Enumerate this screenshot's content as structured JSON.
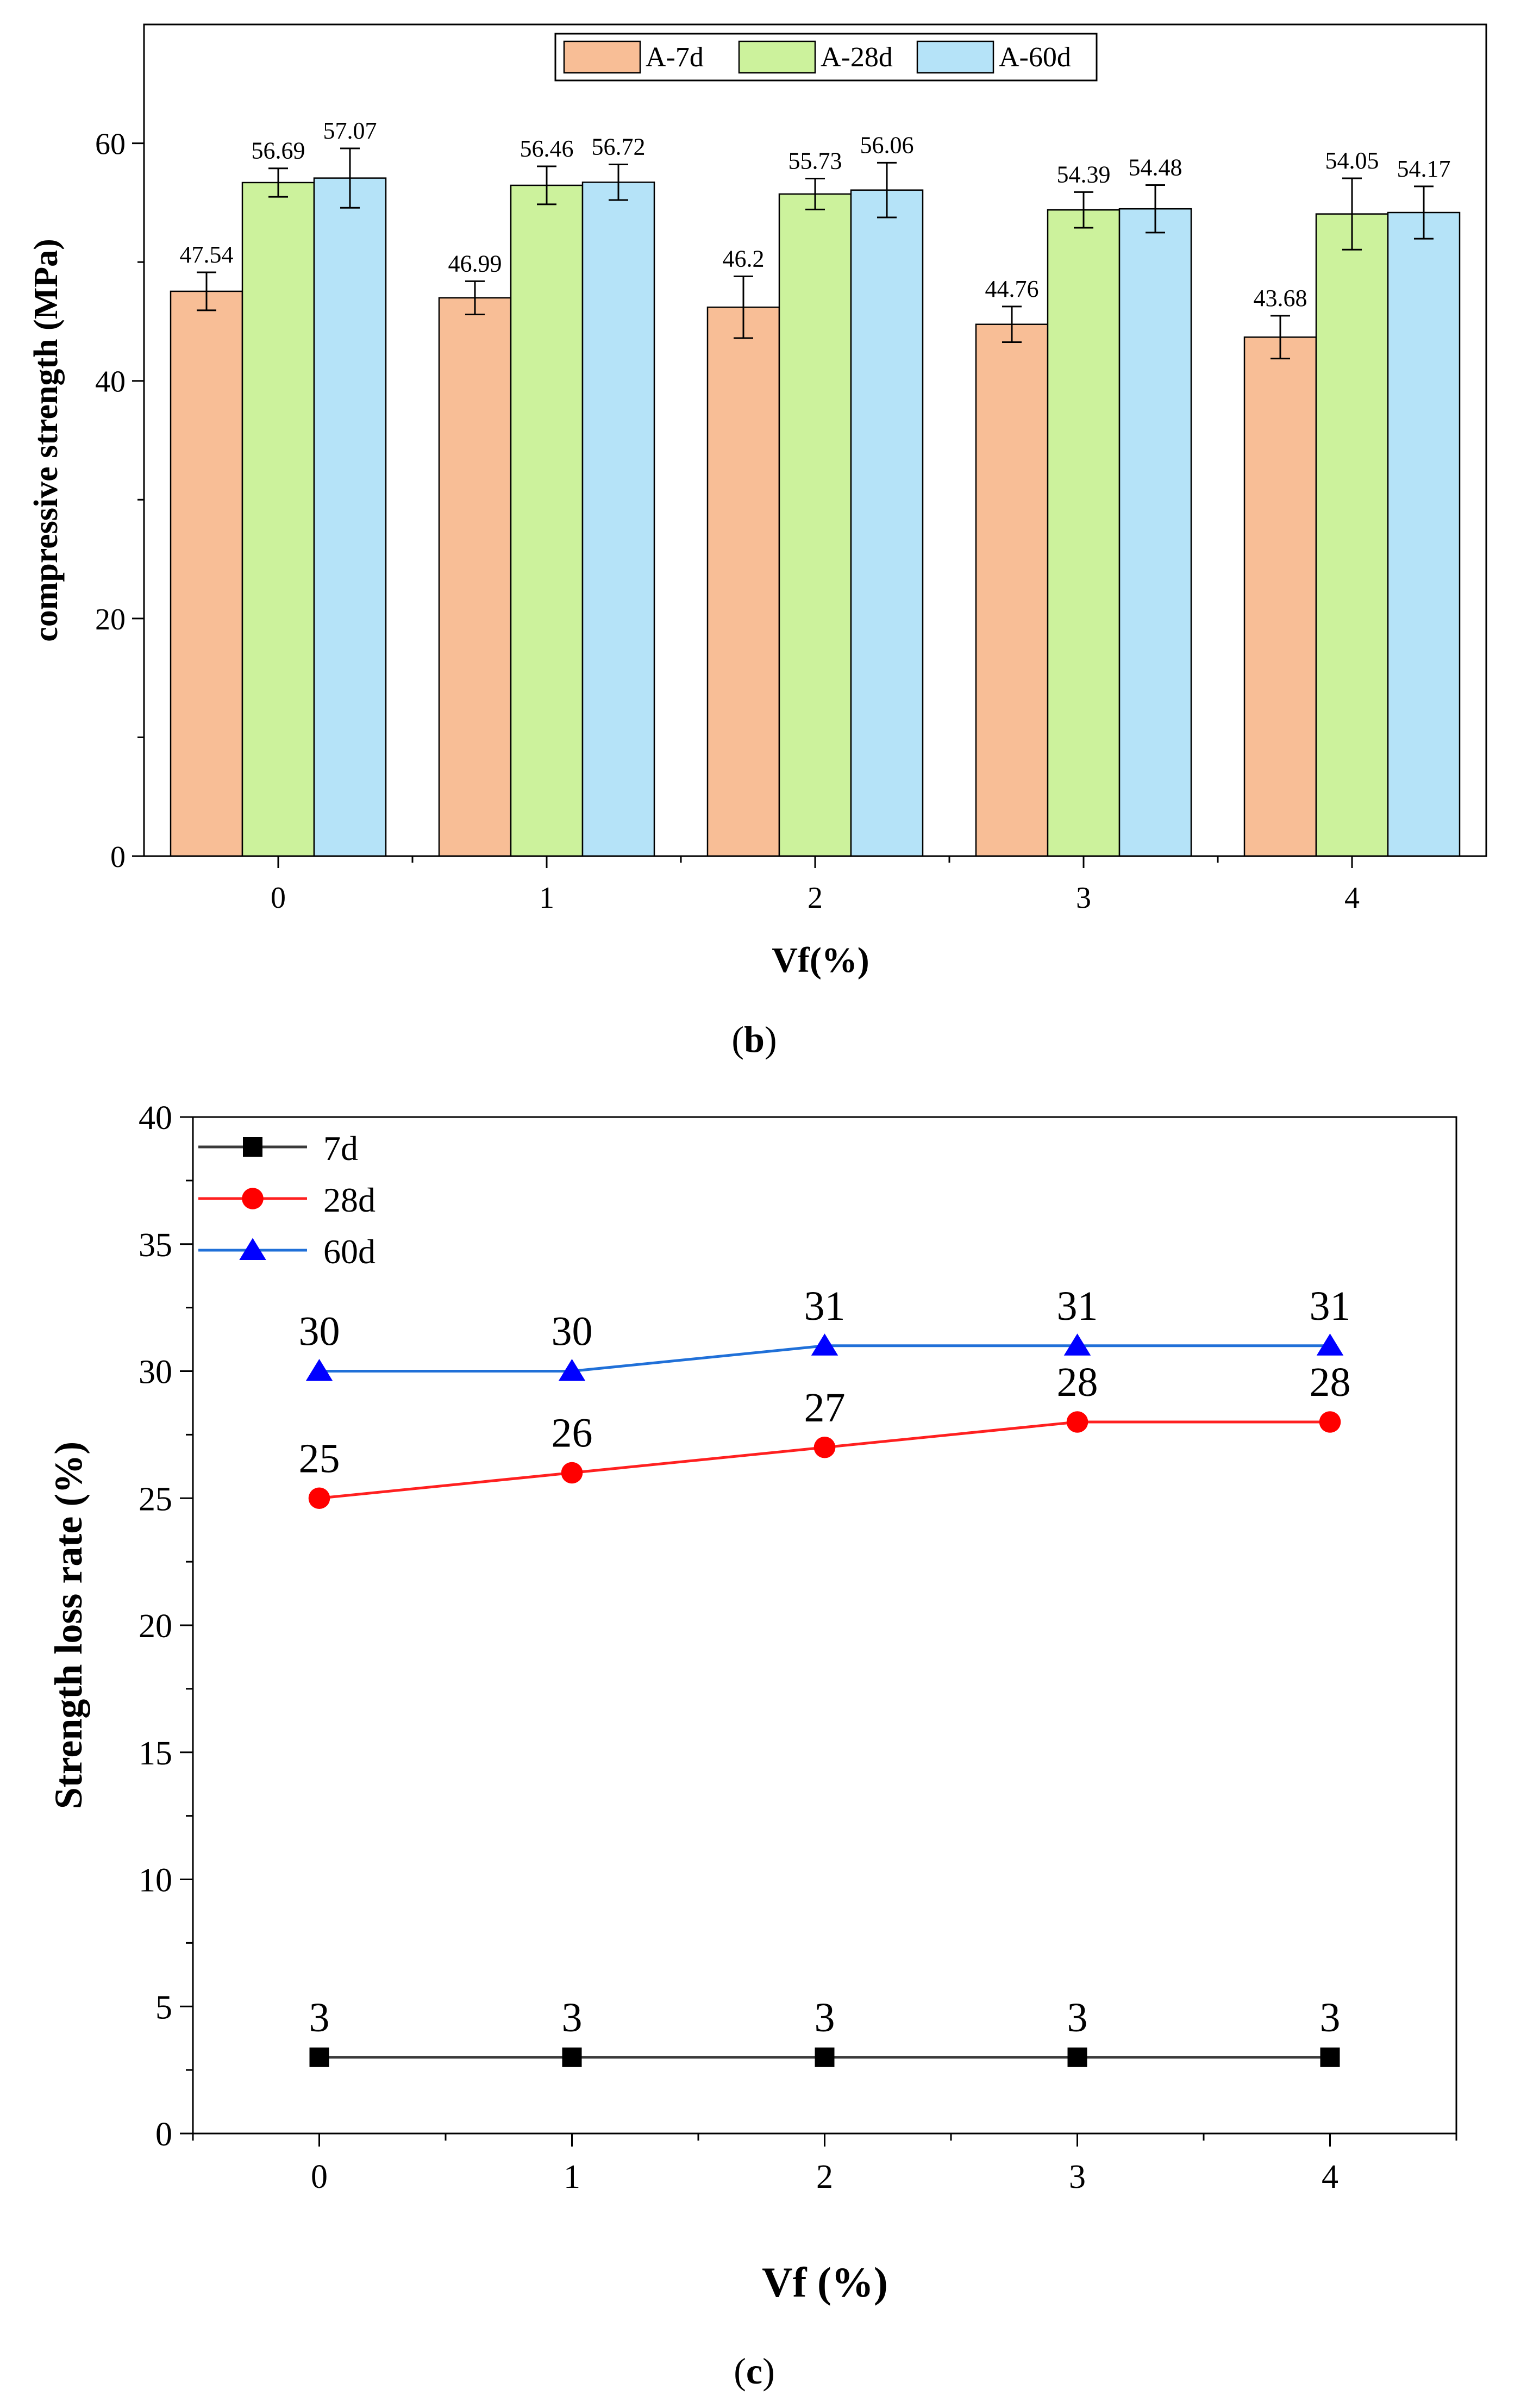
{
  "chart_data": [
    {
      "type": "bar",
      "panel_label_prefix": "(",
      "panel_label_letter": "b",
      "panel_label_suffix": ")",
      "xlabel": "Vf(%)",
      "ylabel": "compressive strength (MPa)",
      "categories": [
        "0",
        "1",
        "2",
        "3",
        "4"
      ],
      "ylim": [
        0,
        70
      ],
      "yticks": [
        "0",
        "20",
        "40",
        "60"
      ],
      "ytick_values": [
        0,
        20,
        40,
        60
      ],
      "legend_position": "top-center",
      "grid": false,
      "error_bars": true,
      "series": [
        {
          "name": "A-7d",
          "color": "#F8BE96",
          "values": [
            47.54,
            46.99,
            46.2,
            44.76,
            43.68
          ],
          "labels": [
            "47.54",
            "46.99",
            "46.2",
            "44.76",
            "43.68"
          ],
          "errors": [
            1.6,
            1.4,
            2.6,
            1.5,
            1.8
          ]
        },
        {
          "name": "A-28d",
          "color": "#CCF29C",
          "values": [
            56.69,
            56.46,
            55.73,
            54.39,
            54.05
          ],
          "labels": [
            "56.69",
            "56.46",
            "55.73",
            "54.39",
            "54.05"
          ],
          "errors": [
            1.2,
            1.6,
            1.3,
            1.5,
            3.0
          ]
        },
        {
          "name": "A-60d",
          "color": "#B5E3F8",
          "values": [
            57.07,
            56.72,
            56.06,
            54.48,
            54.17
          ],
          "labels": [
            "57.07",
            "56.72",
            "56.06",
            "54.48",
            "54.17"
          ],
          "errors": [
            2.5,
            1.5,
            2.3,
            2.0,
            2.2
          ]
        }
      ]
    },
    {
      "type": "line",
      "panel_label_prefix": "(",
      "panel_label_letter": "c",
      "panel_label_suffix": ")",
      "xlabel": "Vf (%)",
      "ylabel": "Strength loss rate (%)",
      "x": [
        0,
        1,
        2,
        3,
        4
      ],
      "xticks": [
        "0",
        "1",
        "2",
        "3",
        "4"
      ],
      "xlim": [
        -0.5,
        4.5
      ],
      "ylim": [
        0,
        40
      ],
      "yticks": [
        "0",
        "5",
        "10",
        "15",
        "20",
        "25",
        "30",
        "35",
        "40"
      ],
      "ytick_values": [
        0,
        5,
        10,
        15,
        20,
        25,
        30,
        35,
        40
      ],
      "legend_position": "top-left",
      "grid": false,
      "series": [
        {
          "name": "7d",
          "color": "#000000",
          "line_color": "#3A3A3A",
          "marker": "square",
          "values": [
            3,
            3,
            3,
            3,
            3
          ],
          "labels": [
            "3",
            "3",
            "3",
            "3",
            "3"
          ]
        },
        {
          "name": "28d",
          "color": "#FF0000",
          "line_color": "#FF2020",
          "marker": "circle",
          "values": [
            25,
            26,
            27,
            28,
            28
          ],
          "labels": [
            "25",
            "26",
            "27",
            "28",
            "28"
          ]
        },
        {
          "name": "60d",
          "color": "#0000FF",
          "line_color": "#2070D8",
          "marker": "triangle",
          "values": [
            30,
            30,
            31,
            31,
            31
          ],
          "labels": [
            "30",
            "30",
            "31",
            "31",
            "31"
          ]
        }
      ]
    }
  ]
}
